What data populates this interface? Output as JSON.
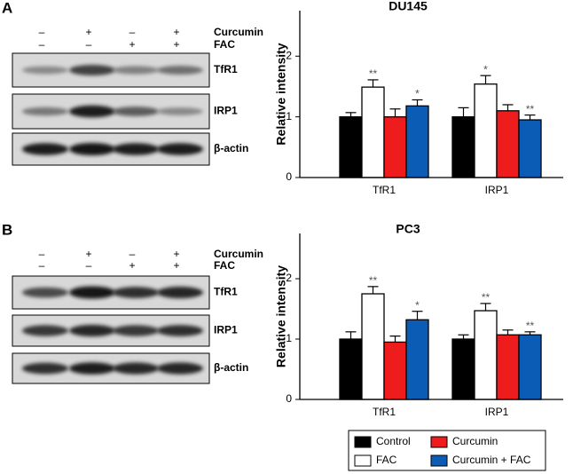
{
  "panels": [
    {
      "label": "A",
      "treatments": [
        {
          "name": "Curcumin",
          "signs": [
            "–",
            "+",
            "–",
            "+"
          ]
        },
        {
          "name": "FAC",
          "signs": [
            "–",
            "–",
            "+",
            "+"
          ]
        }
      ],
      "bands": [
        "TfR1",
        "IRP1",
        "β-actin"
      ]
    },
    {
      "label": "B",
      "treatments": [
        {
          "name": "Curcumin",
          "signs": [
            "–",
            "+",
            "–",
            "+"
          ]
        },
        {
          "name": "FAC",
          "signs": [
            "–",
            "–",
            "+",
            "+"
          ]
        }
      ],
      "bands": [
        "TfR1",
        "IRP1",
        "β-actin"
      ]
    }
  ],
  "legend": {
    "entries": [
      {
        "name": "Control",
        "color": "#000000"
      },
      {
        "name": "FAC",
        "color": "#ffffff"
      },
      {
        "name": "Curcumin",
        "color": "#ee1c1c"
      },
      {
        "name": "Curcumin + FAC",
        "color": "#0a5cb4"
      }
    ],
    "order": [
      0,
      2,
      1,
      3
    ]
  },
  "chart_data": [
    {
      "type": "bar",
      "title": "DU145",
      "y_label": "Relative intensity",
      "categories": [
        "TfR1",
        "IRP1"
      ],
      "series": [
        {
          "values": [
            1.0,
            1.0
          ],
          "errors": [
            0.07,
            0.15
          ]
        },
        {
          "values": [
            1.49,
            1.54
          ],
          "errors": [
            0.12,
            0.14
          ],
          "significance": [
            "**",
            "*"
          ]
        },
        {
          "values": [
            1.0,
            1.1
          ],
          "errors": [
            0.13,
            0.1
          ]
        },
        {
          "values": [
            1.18,
            0.95
          ],
          "errors": [
            0.1,
            0.08
          ],
          "significance": [
            "*",
            "**"
          ]
        }
      ],
      "ylim": [
        0,
        2.75
      ],
      "yticks": [
        0,
        1,
        2
      ]
    },
    {
      "type": "bar",
      "title": "PC3",
      "y_label": "Relative intensity",
      "categories": [
        "TfR1",
        "IRP1"
      ],
      "series": [
        {
          "values": [
            1.0,
            1.0
          ],
          "errors": [
            0.12,
            0.07
          ]
        },
        {
          "values": [
            1.75,
            1.47
          ],
          "errors": [
            0.12,
            0.12
          ],
          "significance": [
            "**",
            "**"
          ]
        },
        {
          "values": [
            0.95,
            1.07
          ],
          "errors": [
            0.1,
            0.08
          ]
        },
        {
          "values": [
            1.32,
            1.07
          ],
          "errors": [
            0.14,
            0.05
          ],
          "significance": [
            "*",
            "**"
          ]
        }
      ],
      "ylim": [
        0,
        2.75
      ],
      "yticks": [
        0,
        1,
        2
      ]
    }
  ]
}
